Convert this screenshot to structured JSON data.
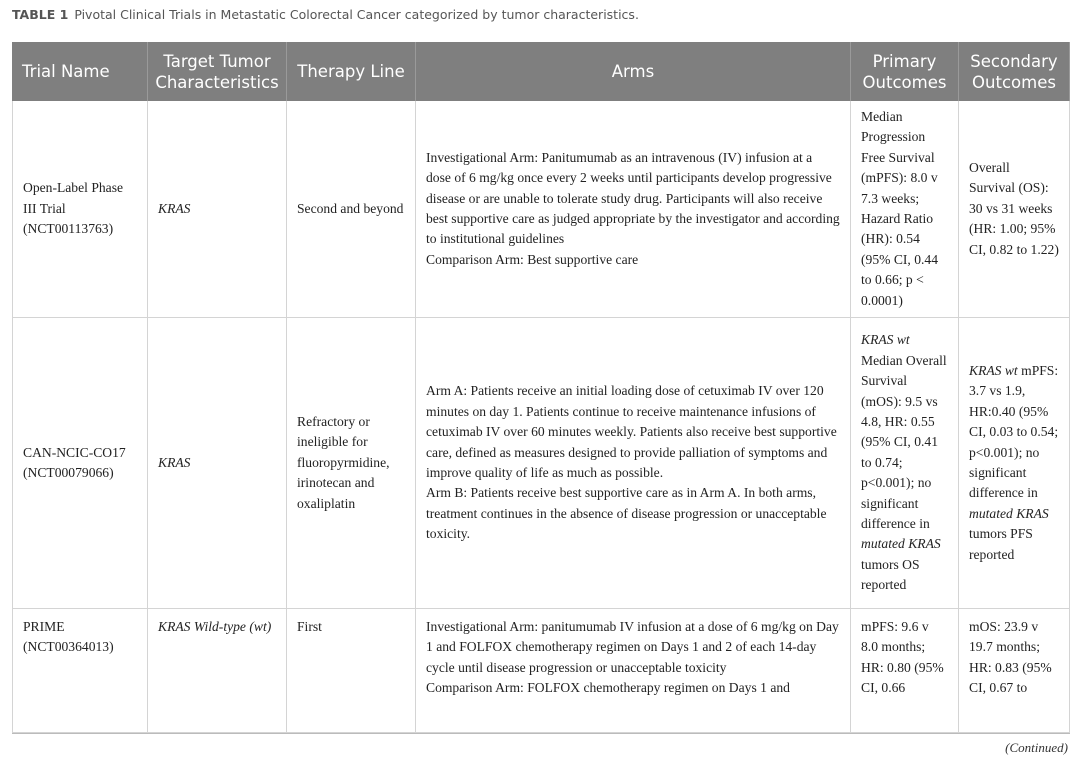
{
  "caption": {
    "label": "TABLE 1",
    "title": "Pivotal Clinical Trials in Metastatic Colorectal Cancer categorized by tumor characteristics."
  },
  "header": [
    "Trial Name",
    "Target Tumor Characteristics",
    "Therapy Line",
    "Arms",
    "Primary Outcomes",
    "Secondary Outcomes"
  ],
  "rows": [
    [
      [
        {
          "t": "Open-Label Phase III Trial (NCT00113763)"
        }
      ],
      [
        {
          "t": "KRAS",
          "i": true
        }
      ],
      [
        {
          "t": "Second and beyond"
        }
      ],
      [
        {
          "t": "Investigational Arm: Panitumumab as an intravenous (IV) infusion at a dose of 6 mg/kg once every 2 weeks until participants develop progressive disease or are unable to tolerate study drug. Participants will also receive best supportive care as judged appropriate by the investigator and according to institutional guidelines"
        },
        {
          "br": true
        },
        {
          "t": "Comparison Arm: Best supportive care"
        }
      ],
      [
        {
          "t": "Median Progression Free Survival (mPFS): 8.0 v 7.3 weeks; Hazard Ratio (HR): 0.54 (95% CI, 0.44 to 0.66; p < 0.0001)"
        }
      ],
      [
        {
          "t": "Overall Survival (OS): 30 vs 31 weeks (HR: 1.00; 95% CI, 0.82 to 1.22)"
        }
      ]
    ],
    [
      [
        {
          "t": "CAN-NCIC-CO17 (NCT00079066)"
        }
      ],
      [
        {
          "t": "KRAS",
          "i": true
        }
      ],
      [
        {
          "t": "Refractory or ineligible for fluoropyrmidine, irinotecan and oxaliplatin"
        }
      ],
      [
        {
          "t": "Arm A: Patients receive an initial loading dose of cetuximab IV over 120 minutes on day 1. Patients continue to receive maintenance infusions of cetuximab IV over 60 minutes weekly. Patients also receive best supportive care, defined as measures designed to provide palliation of symptoms and improve quality of life as much as possible."
        },
        {
          "br": true
        },
        {
          "t": "Arm B: Patients receive best supportive care as in Arm A. In both arms, treatment continues in the absence of disease progression or unacceptable toxicity."
        }
      ],
      [
        {
          "t": "KRAS wt",
          "i": true
        },
        {
          "t": " Median Overall Survival (mOS): 9.5 vs 4.8, HR: 0.55 (95% CI, 0.41 to 0.74; p<0.001); no significant difference in "
        },
        {
          "t": "mutated KRAS",
          "i": true
        },
        {
          "t": " tumors OS reported"
        }
      ],
      [
        {
          "t": "KRAS wt",
          "i": true
        },
        {
          "t": " mPFS: 3.7 vs 1.9, HR:0.40 (95% CI, 0.03 to 0.54; p<0.001); no significant difference in "
        },
        {
          "t": "mutated KRAS",
          "i": true
        },
        {
          "t": " tumors PFS reported"
        }
      ]
    ],
    [
      [
        {
          "t": "PRIME (NCT00364013)"
        }
      ],
      [
        {
          "t": "KRAS Wild-type (wt)",
          "i": true
        }
      ],
      [
        {
          "t": "First"
        }
      ],
      [
        {
          "t": "Investigational Arm: panitumumab IV infusion at a dose of 6 mg/kg on Day 1 and FOLFOX chemotherapy regimen on Days 1 and 2 of each 14-day cycle until disease progression or unacceptable toxicity"
        },
        {
          "br": true
        },
        {
          "t": "Comparison Arm: FOLFOX chemotherapy regimen on Days 1 and"
        }
      ],
      [
        {
          "t": "mPFS: 9.6 v 8.0 months; HR: 0.80 (95% CI, 0.66"
        }
      ],
      [
        {
          "t": "mOS: 23.9 v 19.7 months; HR: 0.83 (95% CI, 0.67 to"
        }
      ]
    ]
  ],
  "footer": "(Continued)"
}
